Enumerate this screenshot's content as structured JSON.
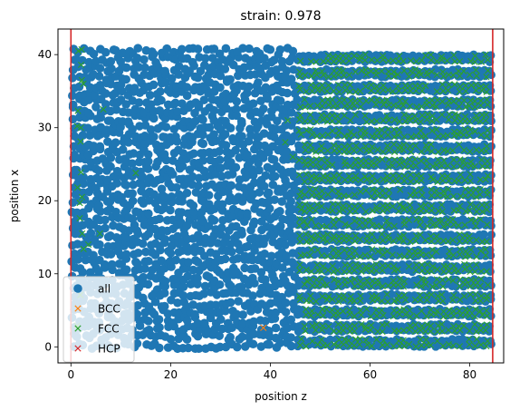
{
  "chart_data": {
    "type": "scatter",
    "title": "strain: 0.978",
    "xlabel": "position z",
    "ylabel": "position x",
    "xlim": [
      -2.6,
      86.8
    ],
    "ylim": [
      -2.2,
      43.5
    ],
    "xticks": [
      0,
      20,
      40,
      60,
      80
    ],
    "yticks": [
      0,
      10,
      20,
      30,
      40
    ],
    "grid": false,
    "legend_position": "lower-left",
    "vertical_lines": [
      0,
      84.6
    ],
    "vertical_line_color": "#d62728",
    "lattice": {
      "z_min": 0.5,
      "z_max": 84.2,
      "z_step": 1.1,
      "x_min": 0.2,
      "x_max": 41.0,
      "x_step": 1.15,
      "ordered_row_z_start": 45.5,
      "ordered_row_spacing": 2.05,
      "fcc_region_z_start": 46.0
    },
    "series": [
      {
        "name": "all",
        "marker": "o",
        "color": "#1f77b4",
        "description_points": "dense atom positions over full box"
      },
      {
        "name": "BCC",
        "marker": "x",
        "color": "#ff7f0e",
        "points": [
          [
            38.6,
            2.6
          ]
        ]
      },
      {
        "name": "FCC",
        "marker": "x",
        "color": "#2ca02c",
        "extra_points": [
          [
            13.0,
            23.8
          ],
          [
            5.8,
            15.5
          ],
          [
            43.0,
            28.0
          ],
          [
            43.5,
            31.0
          ],
          [
            44.5,
            26.0
          ],
          [
            2.2,
            20.5
          ],
          [
            3.5,
            14.0
          ],
          [
            2.5,
            36.0
          ],
          [
            1.5,
            40.5
          ],
          [
            6.5,
            32.5
          ],
          [
            2.0,
            30.0
          ]
        ]
      },
      {
        "name": "HCP",
        "marker": "x",
        "color": "#d62728",
        "points": []
      }
    ]
  }
}
